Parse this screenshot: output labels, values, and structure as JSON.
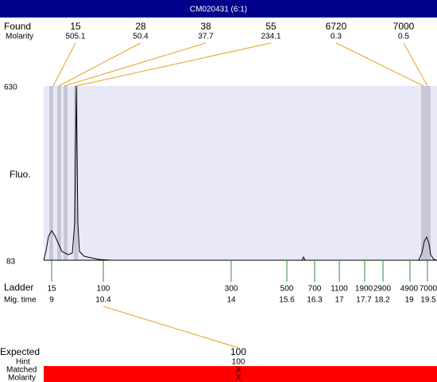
{
  "header": {
    "title": "CM020431 (6:1)"
  },
  "found": {
    "label": "Found",
    "molarity_label": "Molarity",
    "peaks": [
      {
        "size": "15",
        "molarity": "505.1"
      },
      {
        "size": "28",
        "molarity": "50.4"
      },
      {
        "size": "38",
        "molarity": "37.7"
      },
      {
        "size": "55",
        "molarity": "234.1"
      },
      {
        "size": "6720",
        "molarity": "0.3"
      },
      {
        "size": "7000",
        "molarity": "0.5"
      }
    ]
  },
  "plot": {
    "y_label": "Fluo.",
    "y_top": "630",
    "y_bottom": "83"
  },
  "ladder": {
    "label": "Ladder",
    "time_label": "Mig. time",
    "sizes": [
      "15",
      "100",
      "300",
      "500",
      "700",
      "1100",
      "1900",
      "2900",
      "4900",
      "7000"
    ],
    "times": [
      "9",
      "10.4",
      "14",
      "15.6",
      "16.3",
      "17",
      "17.7",
      "18.2",
      "19",
      "19.5"
    ]
  },
  "expected": {
    "label": "Expected",
    "value": "100",
    "hint_label": "Hint",
    "hint": "100",
    "matched_label": "Matched",
    "matched": "X",
    "molarity_label": "Molarity",
    "molarity": "X"
  }
}
